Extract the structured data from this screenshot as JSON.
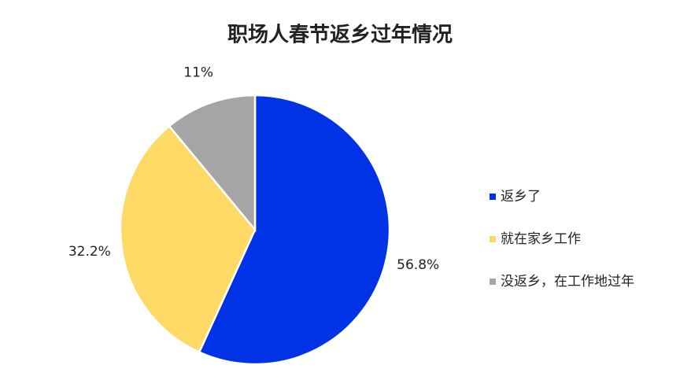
{
  "chart_data": {
    "type": "pie",
    "title": "职场人春节返乡过年情况",
    "categories": [
      "返乡了",
      "就在家乡工作",
      "没返乡，在工作地过年"
    ],
    "values": [
      56.8,
      32.2,
      11
    ],
    "value_labels": [
      "56.8%",
      "32.2%",
      "11%"
    ],
    "colors": [
      "#0033e6",
      "#ffd966",
      "#a5a5a5"
    ],
    "legend": "right"
  }
}
